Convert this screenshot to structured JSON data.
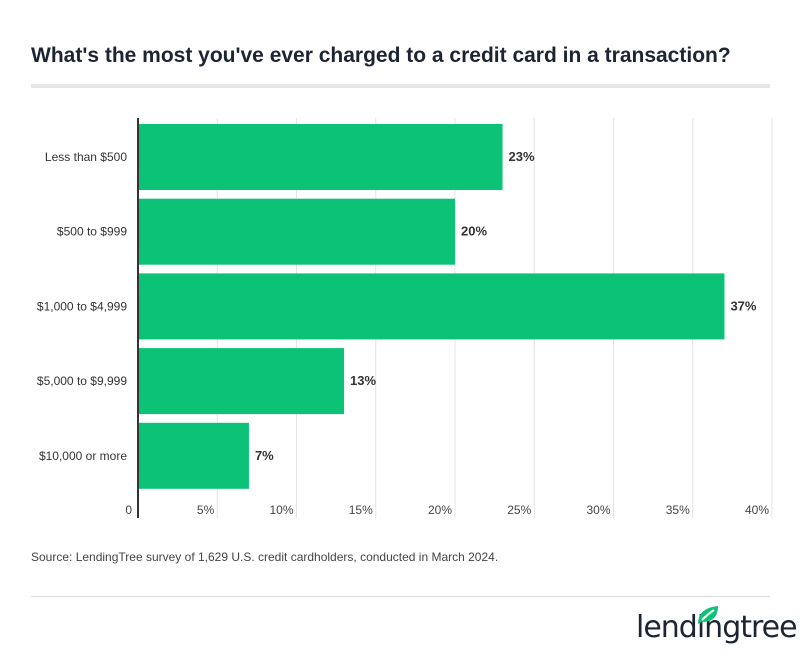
{
  "title": "What's the most you've ever charged to a credit card in a transaction?",
  "source": "Source: LendingTree survey of 1,629 U.S. credit cardholders, conducted in March 2024.",
  "logo": {
    "text": "lendingtree",
    "icon": "leaf-icon",
    "color": "#0cc277"
  },
  "chart_data": {
    "type": "bar",
    "orientation": "horizontal",
    "title": "What's the most you've ever charged to a credit card in a transaction?",
    "categories": [
      "Less than $500",
      "$500 to $999",
      "$1,000 to $4,999",
      "$5,000 to $9,999",
      "$10,000 or more"
    ],
    "values": [
      23,
      20,
      37,
      13,
      7
    ],
    "labels": [
      "23%",
      "20%",
      "37%",
      "13%",
      "7%"
    ],
    "xlim": [
      0,
      40
    ],
    "ticks": [
      0,
      5,
      10,
      15,
      20,
      25,
      30,
      35,
      40
    ],
    "tick_labels": [
      "0",
      "5%",
      "10%",
      "15%",
      "20%",
      "25%",
      "30%",
      "35%",
      "40%"
    ],
    "grid": true,
    "bar_color": "#0cc277"
  }
}
